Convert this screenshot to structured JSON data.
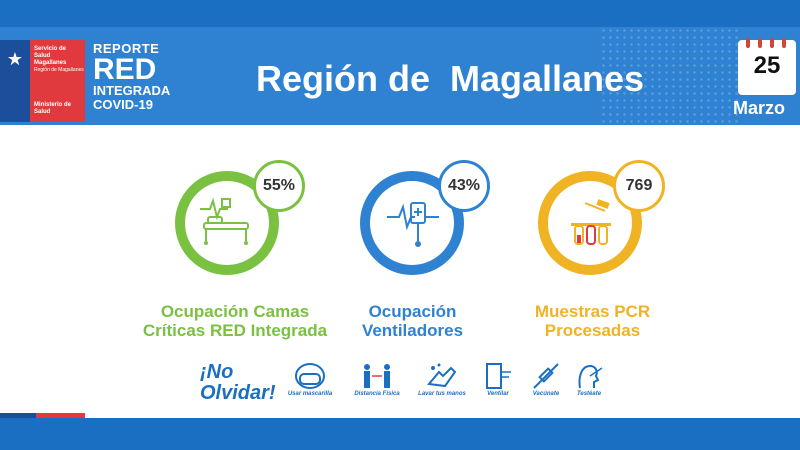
{
  "header": {
    "logo": {
      "service": "Servicio de Salud Magallanes",
      "region_small": "Región de Magallanes",
      "ministry": "Ministerio de Salud"
    },
    "report": {
      "line1": "REPORTE",
      "line2": "RED",
      "line3": "INTEGRADA",
      "line4": "COVID-19"
    },
    "title": "Región de  Magallanes",
    "calendar": {
      "day": "25",
      "month": "Marzo"
    }
  },
  "kpis": [
    {
      "value": "55%",
      "label_line1": "Ocupación Camas",
      "label_line2": "Críticas RED Integrada",
      "color": "#7ac142",
      "icon": "hospital-bed-icon"
    },
    {
      "value": "43%",
      "label_line1": "Ocupación",
      "label_line2": "Ventiladores",
      "color": "#2f82d2",
      "icon": "ventilator-icon"
    },
    {
      "value": "769",
      "label_line1": "Muestras PCR",
      "label_line2": "Procesadas",
      "color": "#f0b323",
      "icon": "pcr-test-tubes-icon"
    }
  ],
  "reminders": {
    "title_line1": "¡No",
    "title_line2": "Olvidar!",
    "items": [
      {
        "label": "Usar mascarilla",
        "icon": "mask-icon"
      },
      {
        "label": "Distancia Física",
        "icon": "distance-icon"
      },
      {
        "label": "Lavar tus manos",
        "icon": "hand-wash-icon"
      },
      {
        "label": "Ventilar",
        "icon": "window-icon"
      },
      {
        "label": "Vacúnate",
        "icon": "syringe-icon"
      },
      {
        "label": "Testéate",
        "icon": "swab-test-icon"
      }
    ]
  },
  "colors": {
    "header_blue": "#2f82d2",
    "band_blue": "#1b6fc2",
    "green": "#7ac142",
    "blue": "#2f82d2",
    "yellow": "#f0b323",
    "red": "#e03a3e"
  }
}
